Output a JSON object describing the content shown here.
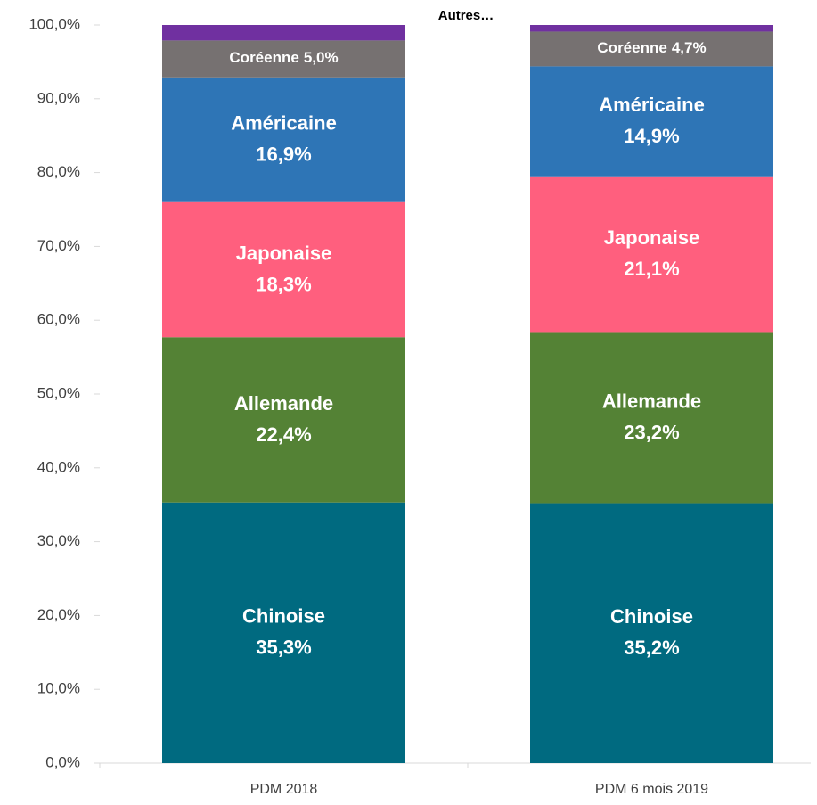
{
  "chart_data": {
    "type": "stacked_bar",
    "categories": [
      "PDM 2018",
      "PDM 6 mois 2019"
    ],
    "series": [
      {
        "name": "Chinoise",
        "color": "#006a80",
        "values": [
          35.3,
          35.2
        ],
        "value_labels": [
          "35,3%",
          "35,2%"
        ]
      },
      {
        "name": "Allemande",
        "color": "#548235",
        "values": [
          22.4,
          23.2
        ],
        "value_labels": [
          "22,4%",
          "23,2%"
        ]
      },
      {
        "name": "Japonaise",
        "color": "#ff5f7e",
        "values": [
          18.3,
          21.1
        ],
        "value_labels": [
          "18,3%",
          "21,1%"
        ]
      },
      {
        "name": "Américaine",
        "color": "#2e75b6",
        "values": [
          16.9,
          14.9
        ],
        "value_labels": [
          "16,9%",
          "14,9%"
        ]
      },
      {
        "name": "Coréenne",
        "color": "#767171",
        "values": [
          5.0,
          4.7
        ],
        "value_labels": [
          "5,0%",
          "4,7%"
        ]
      },
      {
        "name": "Autres…",
        "color": "#7030a0",
        "values": [
          2.1,
          0.9
        ]
      }
    ],
    "ylim": [
      0,
      100
    ],
    "yticks": [
      {
        "value": 0,
        "label": "0,0%"
      },
      {
        "value": 10,
        "label": "10,0%"
      },
      {
        "value": 20,
        "label": "20,0%"
      },
      {
        "value": 30,
        "label": "30,0%"
      },
      {
        "value": 40,
        "label": "40,0%"
      },
      {
        "value": 50,
        "label": "50,0%"
      },
      {
        "value": 60,
        "label": "60,0%"
      },
      {
        "value": 70,
        "label": "70,0%"
      },
      {
        "value": 80,
        "label": "80,0%"
      },
      {
        "value": 90,
        "label": "90,0%"
      },
      {
        "value": 100,
        "label": "100,0%"
      }
    ],
    "grid": false
  }
}
